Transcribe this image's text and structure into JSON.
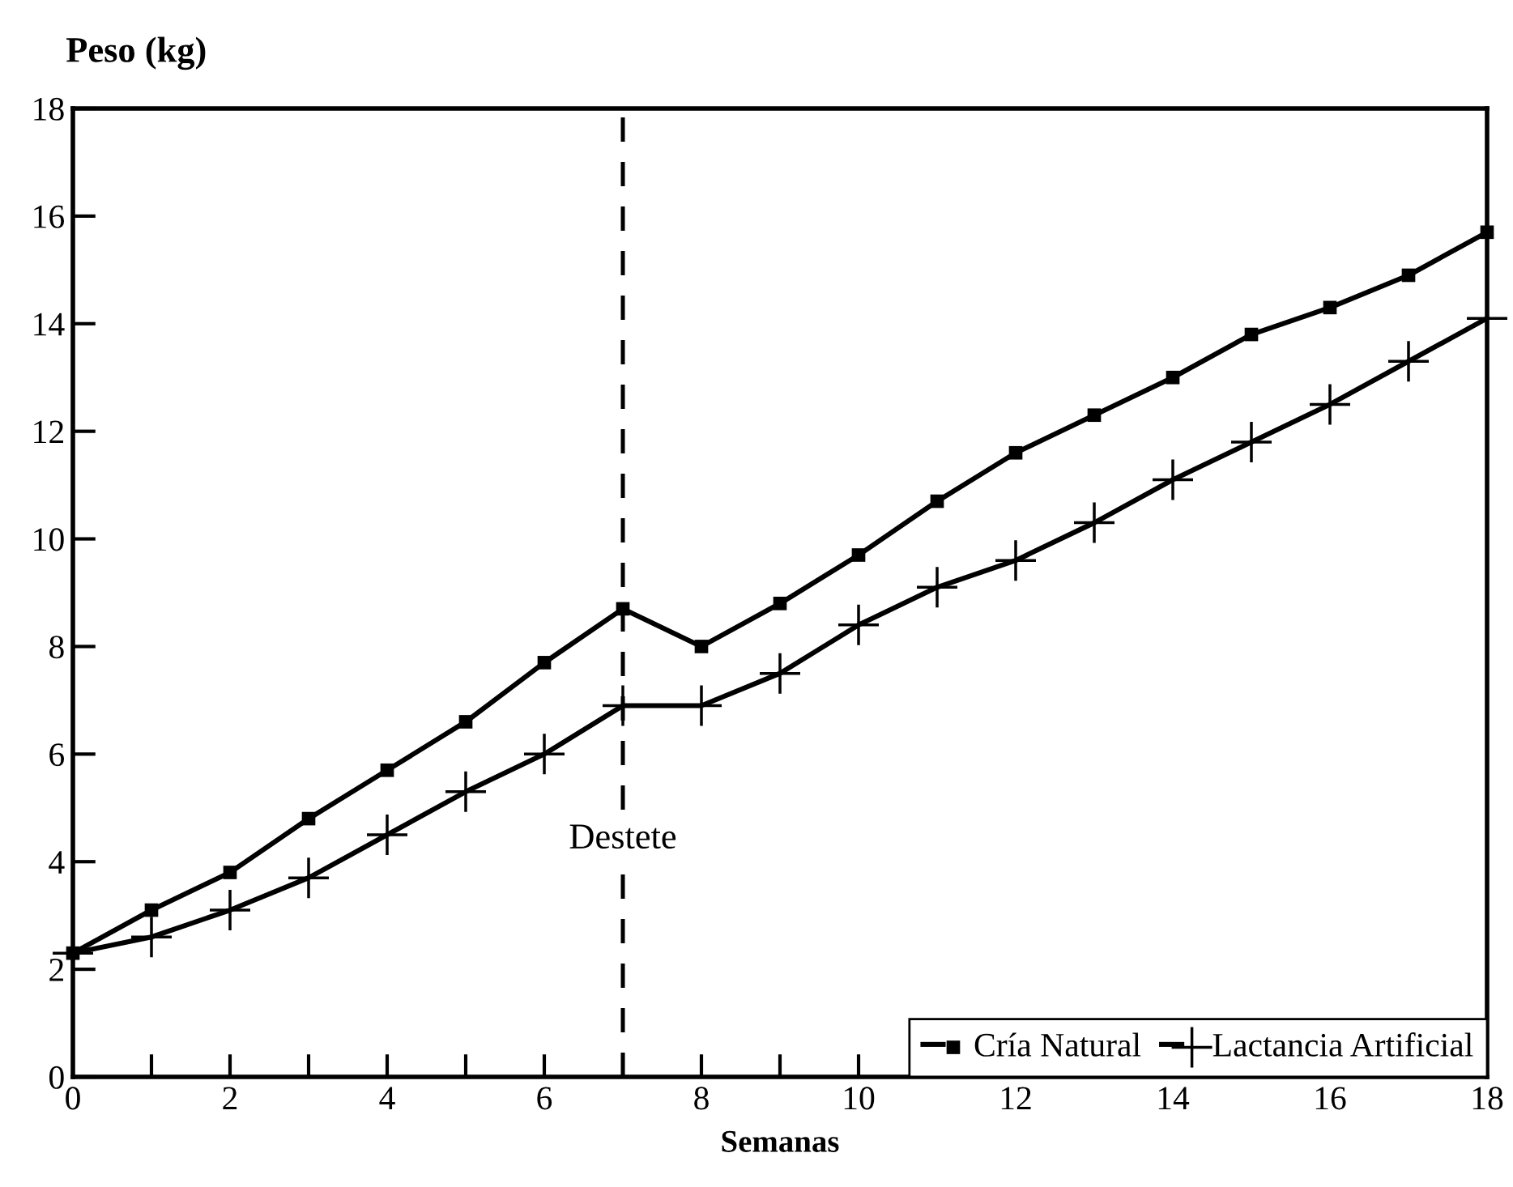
{
  "chart_data": {
    "type": "line",
    "xlabel": "Semanas",
    "ylabel": "Peso (kg)",
    "x": [
      0,
      1,
      2,
      3,
      4,
      5,
      6,
      7,
      8,
      9,
      10,
      11,
      12,
      13,
      14,
      15,
      16,
      17,
      18
    ],
    "series": [
      {
        "name": "Cría Natural",
        "color": "#000000",
        "marker": "square",
        "values": [
          2.3,
          3.1,
          3.8,
          4.8,
          5.7,
          6.6,
          7.7,
          8.7,
          8.0,
          8.8,
          9.7,
          10.7,
          11.6,
          12.3,
          13.0,
          13.8,
          14.3,
          14.9,
          15.7
        ]
      },
      {
        "name": "Lactancia Artificial",
        "color": "#000000",
        "marker": "cross",
        "values": [
          2.3,
          2.6,
          3.1,
          3.7,
          4.5,
          5.3,
          6.0,
          6.9,
          6.9,
          7.5,
          8.4,
          9.1,
          9.6,
          10.3,
          11.1,
          11.8,
          12.5,
          13.3,
          14.1
        ]
      }
    ],
    "xlim": [
      0,
      18
    ],
    "ylim": [
      0,
      18
    ],
    "xticks": [
      0,
      {
        "value": 1,
        "label": null
      },
      2,
      {
        "value": 3,
        "label": null
      },
      4,
      {
        "value": 5,
        "label": null
      },
      6,
      {
        "value": 7,
        "label": null
      },
      8,
      {
        "value": 9,
        "label": null
      },
      10,
      {
        "value": 11,
        "label": null
      },
      12,
      {
        "value": 13,
        "label": null
      },
      14,
      {
        "value": 15,
        "label": null
      },
      16,
      {
        "value": 17,
        "label": null
      },
      18
    ],
    "yticks": [
      0,
      2,
      4,
      6,
      8,
      10,
      12,
      14,
      16,
      18
    ],
    "ref_lines": [
      {
        "axis": "x",
        "value": 7,
        "label": "Destete",
        "line_style": "dashed",
        "color": "#000000"
      }
    ],
    "legend": "bottom right",
    "grid": false,
    "line_style": "solid"
  }
}
